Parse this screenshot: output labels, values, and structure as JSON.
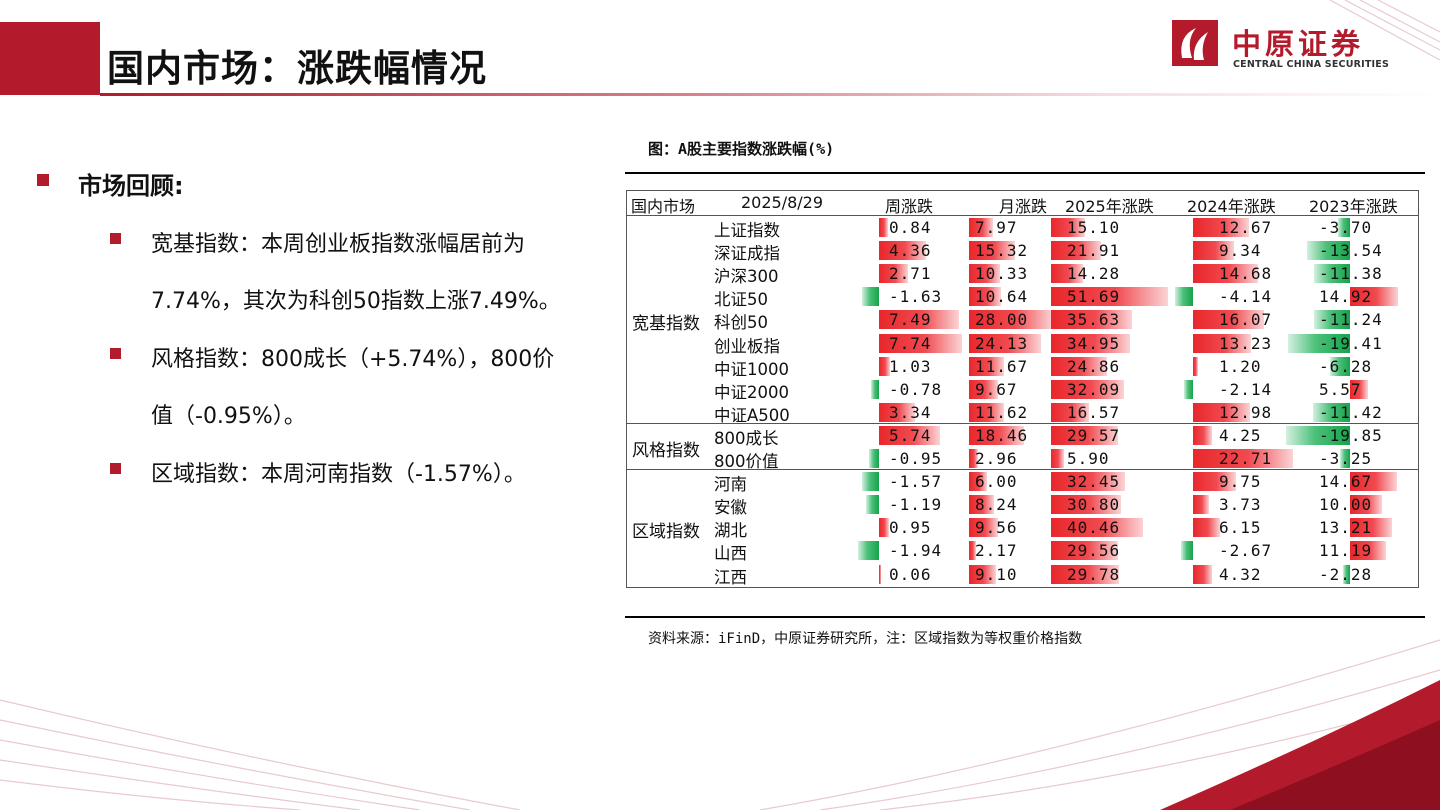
{
  "page": {
    "title": "国内市场：涨跌幅情况",
    "logo": {
      "cn": "中原证券",
      "en": "CENTRAL CHINA SECURITIES"
    }
  },
  "review": {
    "heading": "市场回顾:",
    "bullets": [
      {
        "lines": [
          "宽基指数：本周创业板指数涨幅居前为",
          "7.74%，其次为科创50指数上涨7.49%。"
        ]
      },
      {
        "lines": [
          "风格指数：800成长（+5.74%），800价",
          "值（-0.95%）。"
        ]
      },
      {
        "lines": [
          "区域指数：本周河南指数（-1.57%）。"
        ]
      }
    ]
  },
  "figure": {
    "caption": "图：A股主要指数涨跌幅(%)",
    "source": "资料来源：iFinD，中原证券研究所，注：区域指数为等权重价格指数"
  },
  "table": {
    "headers": [
      "国内市场",
      "2025/8/29",
      "周涨跌",
      "月涨跌",
      "2025年涨跌",
      "2024年涨跌",
      "2023年涨跌"
    ],
    "groups": [
      {
        "label": "宽基指数",
        "rows": [
          {
            "name": "上证指数",
            "values": [
              "0.84",
              "7.97",
              "15.10",
              "12.67",
              "-3.70"
            ]
          },
          {
            "name": "深证成指",
            "values": [
              "4.36",
              "15.32",
              "21.91",
              "9.34",
              "-13.54"
            ]
          },
          {
            "name": "沪深300",
            "values": [
              "2.71",
              "10.33",
              "14.28",
              "14.68",
              "-11.38"
            ]
          },
          {
            "name": "北证50",
            "values": [
              "-1.63",
              "10.64",
              "51.69",
              "-4.14",
              "14.92"
            ]
          },
          {
            "name": "科创50",
            "values": [
              "7.49",
              "28.00",
              "35.63",
              "16.07",
              "-11.24"
            ]
          },
          {
            "name": "创业板指",
            "values": [
              "7.74",
              "24.13",
              "34.95",
              "13.23",
              "-19.41"
            ]
          },
          {
            "name": "中证1000",
            "values": [
              "1.03",
              "11.67",
              "24.86",
              "1.20",
              "-6.28"
            ]
          },
          {
            "name": "中证2000",
            "values": [
              "-0.78",
              "9.67",
              "32.09",
              "-2.14",
              "5.57"
            ]
          },
          {
            "name": "中证A500",
            "values": [
              "3.34",
              "11.62",
              "16.57",
              "12.98",
              "-11.42"
            ]
          }
        ]
      },
      {
        "label": "风格指数",
        "rows": [
          {
            "name": "800成长",
            "values": [
              "5.74",
              "18.46",
              "29.57",
              "4.25",
              "-19.85"
            ]
          },
          {
            "name": "800价值",
            "values": [
              "-0.95",
              "2.96",
              "5.90",
              "22.71",
              "-3.25"
            ]
          }
        ]
      },
      {
        "label": "区域指数",
        "rows": [
          {
            "name": "河南",
            "values": [
              "-1.57",
              "6.00",
              "32.45",
              "9.75",
              "14.67"
            ]
          },
          {
            "name": "安徽",
            "values": [
              "-1.19",
              "8.24",
              "30.80",
              "3.73",
              "10.00"
            ]
          },
          {
            "name": "湖北",
            "values": [
              "0.95",
              "9.56",
              "40.46",
              "6.15",
              "13.21"
            ]
          },
          {
            "name": "山西",
            "values": [
              "-1.94",
              "2.17",
              "29.56",
              "-2.67",
              "11.19"
            ]
          },
          {
            "name": "江西",
            "values": [
              "0.06",
              "9.10",
              "29.78",
              "4.32",
              "-2.28"
            ]
          }
        ]
      }
    ],
    "colors": {
      "positive": "#e8272b",
      "negative": "#16a34a"
    }
  },
  "colors": {
    "brand": "#b31b2c"
  }
}
